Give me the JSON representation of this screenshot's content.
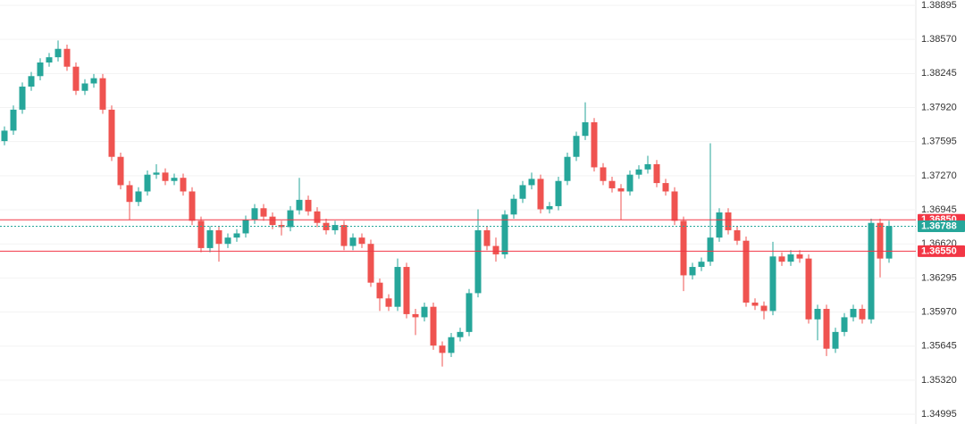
{
  "chart_data": {
    "type": "candlestick",
    "up_color": "#26a69a",
    "down_color": "#ef5350",
    "grid": true,
    "ylim": [
      1.34902,
      1.38946
    ],
    "yticks": [
      1.38895,
      {
        "value": 1.3857,
        "label": "1.38570"
      },
      1.38245,
      {
        "value": 1.3792,
        "label": "1.37920"
      },
      1.37595,
      {
        "value": 1.3727,
        "label": "1.37270"
      },
      1.36945,
      {
        "value": 1.3662,
        "label": "1.36620"
      },
      1.36295,
      {
        "value": 1.3597,
        "label": "1.35970"
      },
      1.35645,
      {
        "value": 1.3532,
        "label": "1.35320"
      },
      1.34995
    ],
    "price_lines": [
      {
        "value": 1.3685,
        "label": "1.36850",
        "color": "#f23645",
        "style": "solid"
      },
      {
        "value": 1.36788,
        "label": "1.36788",
        "color": "#26a69a",
        "style": "dotted"
      },
      {
        "value": 1.3655,
        "label": "1.36550",
        "color": "#f23645",
        "style": "solid"
      }
    ],
    "candles": [
      [
        1.376,
        1.3774,
        1.3756,
        1.377
      ],
      [
        1.377,
        1.3794,
        1.3766,
        1.379
      ],
      [
        1.379,
        1.3816,
        1.3786,
        1.3812
      ],
      [
        1.3812,
        1.3826,
        1.3808,
        1.3822
      ],
      [
        1.3822,
        1.3839,
        1.3818,
        1.3835
      ],
      [
        1.3835,
        1.3844,
        1.3831,
        1.384
      ],
      [
        1.384,
        1.3856,
        1.3836,
        1.3848
      ],
      [
        1.3848,
        1.3852,
        1.3827,
        1.3831
      ],
      [
        1.3831,
        1.3835,
        1.3804,
        1.3808
      ],
      [
        1.3808,
        1.3819,
        1.3804,
        1.3815
      ],
      [
        1.3815,
        1.3824,
        1.3811,
        1.382
      ],
      [
        1.382,
        1.3824,
        1.3786,
        1.379
      ],
      [
        1.379,
        1.3794,
        1.3741,
        1.3745
      ],
      [
        1.3745,
        1.3749,
        1.3714,
        1.3718
      ],
      [
        1.3718,
        1.3722,
        1.3685,
        1.3702
      ],
      [
        1.3702,
        1.3716,
        1.3698,
        1.3712
      ],
      [
        1.3712,
        1.3732,
        1.3708,
        1.3728
      ],
      [
        1.3728,
        1.3738,
        1.3724,
        1.373
      ],
      [
        1.373,
        1.3734,
        1.3718,
        1.3722
      ],
      [
        1.3722,
        1.3729,
        1.3718,
        1.3725
      ],
      [
        1.3725,
        1.3729,
        1.3708,
        1.3712
      ],
      [
        1.3712,
        1.3716,
        1.368,
        1.3684
      ],
      [
        1.3684,
        1.3688,
        1.3654,
        1.3658
      ],
      [
        1.3658,
        1.3679,
        1.3654,
        1.3675
      ],
      [
        1.3675,
        1.3679,
        1.3645,
        1.3662
      ],
      [
        1.3662,
        1.3672,
        1.3658,
        1.3668
      ],
      [
        1.3668,
        1.3676,
        1.3664,
        1.3672
      ],
      [
        1.3672,
        1.3689,
        1.3668,
        1.3685
      ],
      [
        1.3685,
        1.37,
        1.3681,
        1.3696
      ],
      [
        1.3696,
        1.37,
        1.3684,
        1.3688
      ],
      [
        1.3688,
        1.3692,
        1.3676,
        1.368
      ],
      [
        1.368,
        1.3684,
        1.367,
        1.3678
      ],
      [
        1.3678,
        1.3698,
        1.3674,
        1.3694
      ],
      [
        1.3694,
        1.3725,
        1.369,
        1.3704
      ],
      [
        1.3704,
        1.3708,
        1.3689,
        1.3693
      ],
      [
        1.3693,
        1.3697,
        1.3678,
        1.3682
      ],
      [
        1.3682,
        1.3686,
        1.3671,
        1.3675
      ],
      [
        1.3675,
        1.3684,
        1.3671,
        1.368
      ],
      [
        1.368,
        1.3684,
        1.3656,
        1.366
      ],
      [
        1.366,
        1.3672,
        1.3656,
        1.3668
      ],
      [
        1.3668,
        1.3672,
        1.3658,
        1.3662
      ],
      [
        1.3662,
        1.3666,
        1.3621,
        1.3625
      ],
      [
        1.3625,
        1.3629,
        1.3598,
        1.361
      ],
      [
        1.361,
        1.3614,
        1.3598,
        1.3602
      ],
      [
        1.3602,
        1.3648,
        1.3598,
        1.364
      ],
      [
        1.364,
        1.3644,
        1.3591,
        1.3595
      ],
      [
        1.3595,
        1.36,
        1.3575,
        1.3592
      ],
      [
        1.3592,
        1.3606,
        1.3588,
        1.3602
      ],
      [
        1.3602,
        1.3606,
        1.3561,
        1.3565
      ],
      [
        1.3565,
        1.3569,
        1.3545,
        1.3558
      ],
      [
        1.3558,
        1.3577,
        1.3554,
        1.3573
      ],
      [
        1.3573,
        1.3582,
        1.3569,
        1.3578
      ],
      [
        1.3578,
        1.3619,
        1.3574,
        1.3615
      ],
      [
        1.3615,
        1.3695,
        1.3611,
        1.3675
      ],
      [
        1.3675,
        1.3679,
        1.3656,
        1.366
      ],
      [
        1.366,
        1.3668,
        1.3645,
        1.3652
      ],
      [
        1.3652,
        1.3694,
        1.3648,
        1.369
      ],
      [
        1.369,
        1.3709,
        1.3686,
        1.3705
      ],
      [
        1.3705,
        1.3722,
        1.3701,
        1.3718
      ],
      [
        1.3718,
        1.373,
        1.3714,
        1.3724
      ],
      [
        1.3724,
        1.3728,
        1.3691,
        1.3695
      ],
      [
        1.3695,
        1.3702,
        1.3691,
        1.3698
      ],
      [
        1.3698,
        1.3726,
        1.3694,
        1.3722
      ],
      [
        1.3722,
        1.3749,
        1.3718,
        1.3745
      ],
      [
        1.3745,
        1.3769,
        1.3741,
        1.3765
      ],
      [
        1.3765,
        1.3797,
        1.3761,
        1.3778
      ],
      [
        1.3778,
        1.3782,
        1.3731,
        1.3735
      ],
      [
        1.3735,
        1.3739,
        1.3718,
        1.3722
      ],
      [
        1.3722,
        1.3726,
        1.3711,
        1.3715
      ],
      [
        1.3715,
        1.3719,
        1.3685,
        1.3712
      ],
      [
        1.3712,
        1.3732,
        1.3708,
        1.3728
      ],
      [
        1.3728,
        1.3737,
        1.3724,
        1.3733
      ],
      [
        1.3733,
        1.3746,
        1.3729,
        1.3738
      ],
      [
        1.3738,
        1.3742,
        1.3716,
        1.372
      ],
      [
        1.372,
        1.3724,
        1.3708,
        1.3712
      ],
      [
        1.3712,
        1.3716,
        1.368,
        1.3684
      ],
      [
        1.3684,
        1.3688,
        1.3617,
        1.3632
      ],
      [
        1.3632,
        1.3644,
        1.3628,
        1.364
      ],
      [
        1.364,
        1.3649,
        1.3636,
        1.3645
      ],
      [
        1.3645,
        1.3758,
        1.3641,
        1.3668
      ],
      [
        1.3668,
        1.3696,
        1.3664,
        1.3692
      ],
      [
        1.3692,
        1.3696,
        1.3671,
        1.3675
      ],
      [
        1.3675,
        1.3679,
        1.3661,
        1.3665
      ],
      [
        1.3665,
        1.3669,
        1.3602,
        1.3606
      ],
      [
        1.3606,
        1.361,
        1.3599,
        1.3603
      ],
      [
        1.3603,
        1.3607,
        1.359,
        1.3598
      ],
      [
        1.3598,
        1.3664,
        1.3594,
        1.365
      ],
      [
        1.365,
        1.3654,
        1.3641,
        1.3645
      ],
      [
        1.3645,
        1.3656,
        1.3641,
        1.3652
      ],
      [
        1.3652,
        1.3656,
        1.3644,
        1.3648
      ],
      [
        1.3648,
        1.3652,
        1.3586,
        1.359
      ],
      [
        1.359,
        1.3604,
        1.357,
        1.36
      ],
      [
        1.36,
        1.3604,
        1.3555,
        1.3562
      ],
      [
        1.3562,
        1.3582,
        1.3558,
        1.3578
      ],
      [
        1.3578,
        1.3596,
        1.3574,
        1.3592
      ],
      [
        1.3592,
        1.3604,
        1.3588,
        1.36
      ],
      [
        1.36,
        1.3604,
        1.3586,
        1.359
      ],
      [
        1.359,
        1.3686,
        1.3586,
        1.3682
      ],
      [
        1.3682,
        1.3686,
        1.363,
        1.3648
      ],
      [
        1.3648,
        1.3684,
        1.3644,
        1.3679
      ]
    ]
  }
}
